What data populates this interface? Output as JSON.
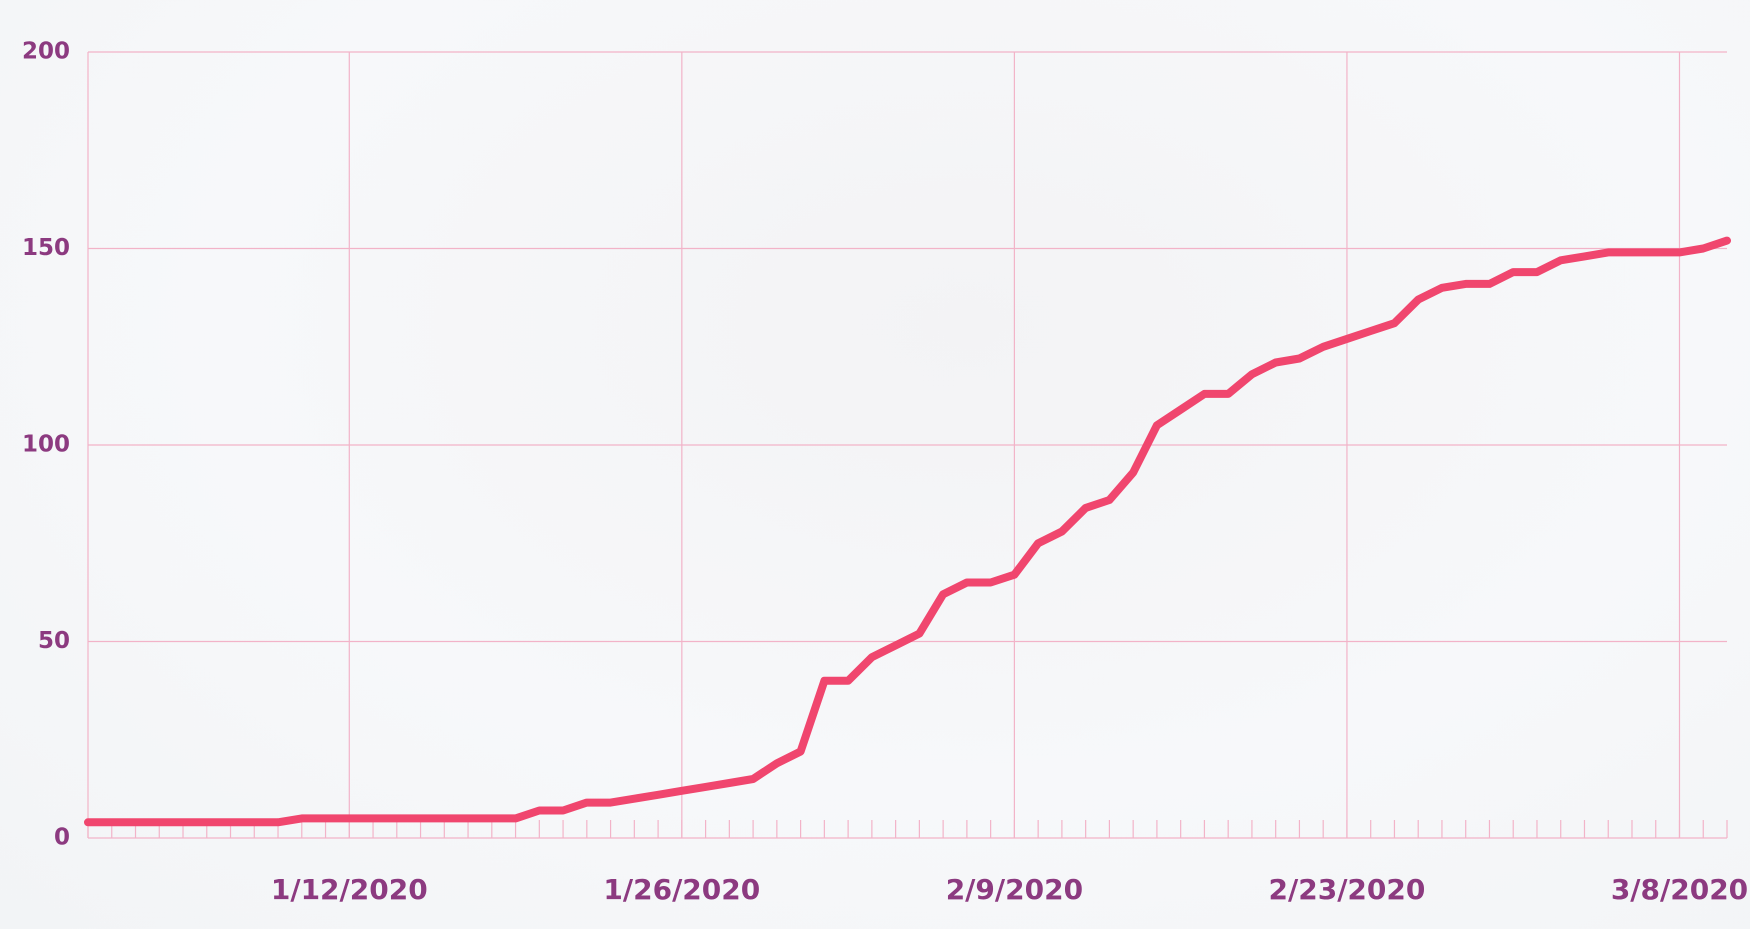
{
  "chart_data": {
    "type": "line",
    "categories": [
      null,
      null,
      null,
      null,
      null,
      null,
      null,
      null,
      null,
      null,
      null,
      "1/12/2020",
      null,
      null,
      null,
      null,
      null,
      null,
      null,
      null,
      null,
      null,
      null,
      null,
      null,
      "1/26/2020",
      null,
      null,
      null,
      null,
      null,
      null,
      null,
      null,
      null,
      null,
      null,
      null,
      null,
      "2/9/2020",
      null,
      null,
      null,
      null,
      null,
      null,
      null,
      null,
      null,
      null,
      null,
      null,
      null,
      "2/23/2020",
      null,
      null,
      null,
      null,
      null,
      null,
      null,
      null,
      null,
      null,
      null,
      null,
      null,
      "3/8/2020",
      null,
      null
    ],
    "series": [
      {
        "name": null,
        "color": "#f0466e",
        "values": [
          4,
          4,
          4,
          4,
          4,
          4,
          4,
          4,
          4,
          5,
          5,
          5,
          5,
          5,
          5,
          5,
          5,
          5,
          5,
          7,
          7,
          9,
          9,
          10,
          11,
          12,
          13,
          14,
          15,
          19,
          22,
          40,
          40,
          46,
          49,
          52,
          62,
          65,
          65,
          67,
          75,
          78,
          84,
          86,
          93,
          105,
          109,
          113,
          113,
          118,
          121,
          122,
          125,
          127,
          129,
          131,
          137,
          140,
          141,
          141,
          144,
          144,
          147,
          148,
          149,
          149,
          149,
          149,
          150,
          152
        ]
      }
    ],
    "ylim": [
      0,
      200
    ],
    "yticks": [
      0,
      50,
      100,
      150,
      200
    ],
    "grid": true
  }
}
